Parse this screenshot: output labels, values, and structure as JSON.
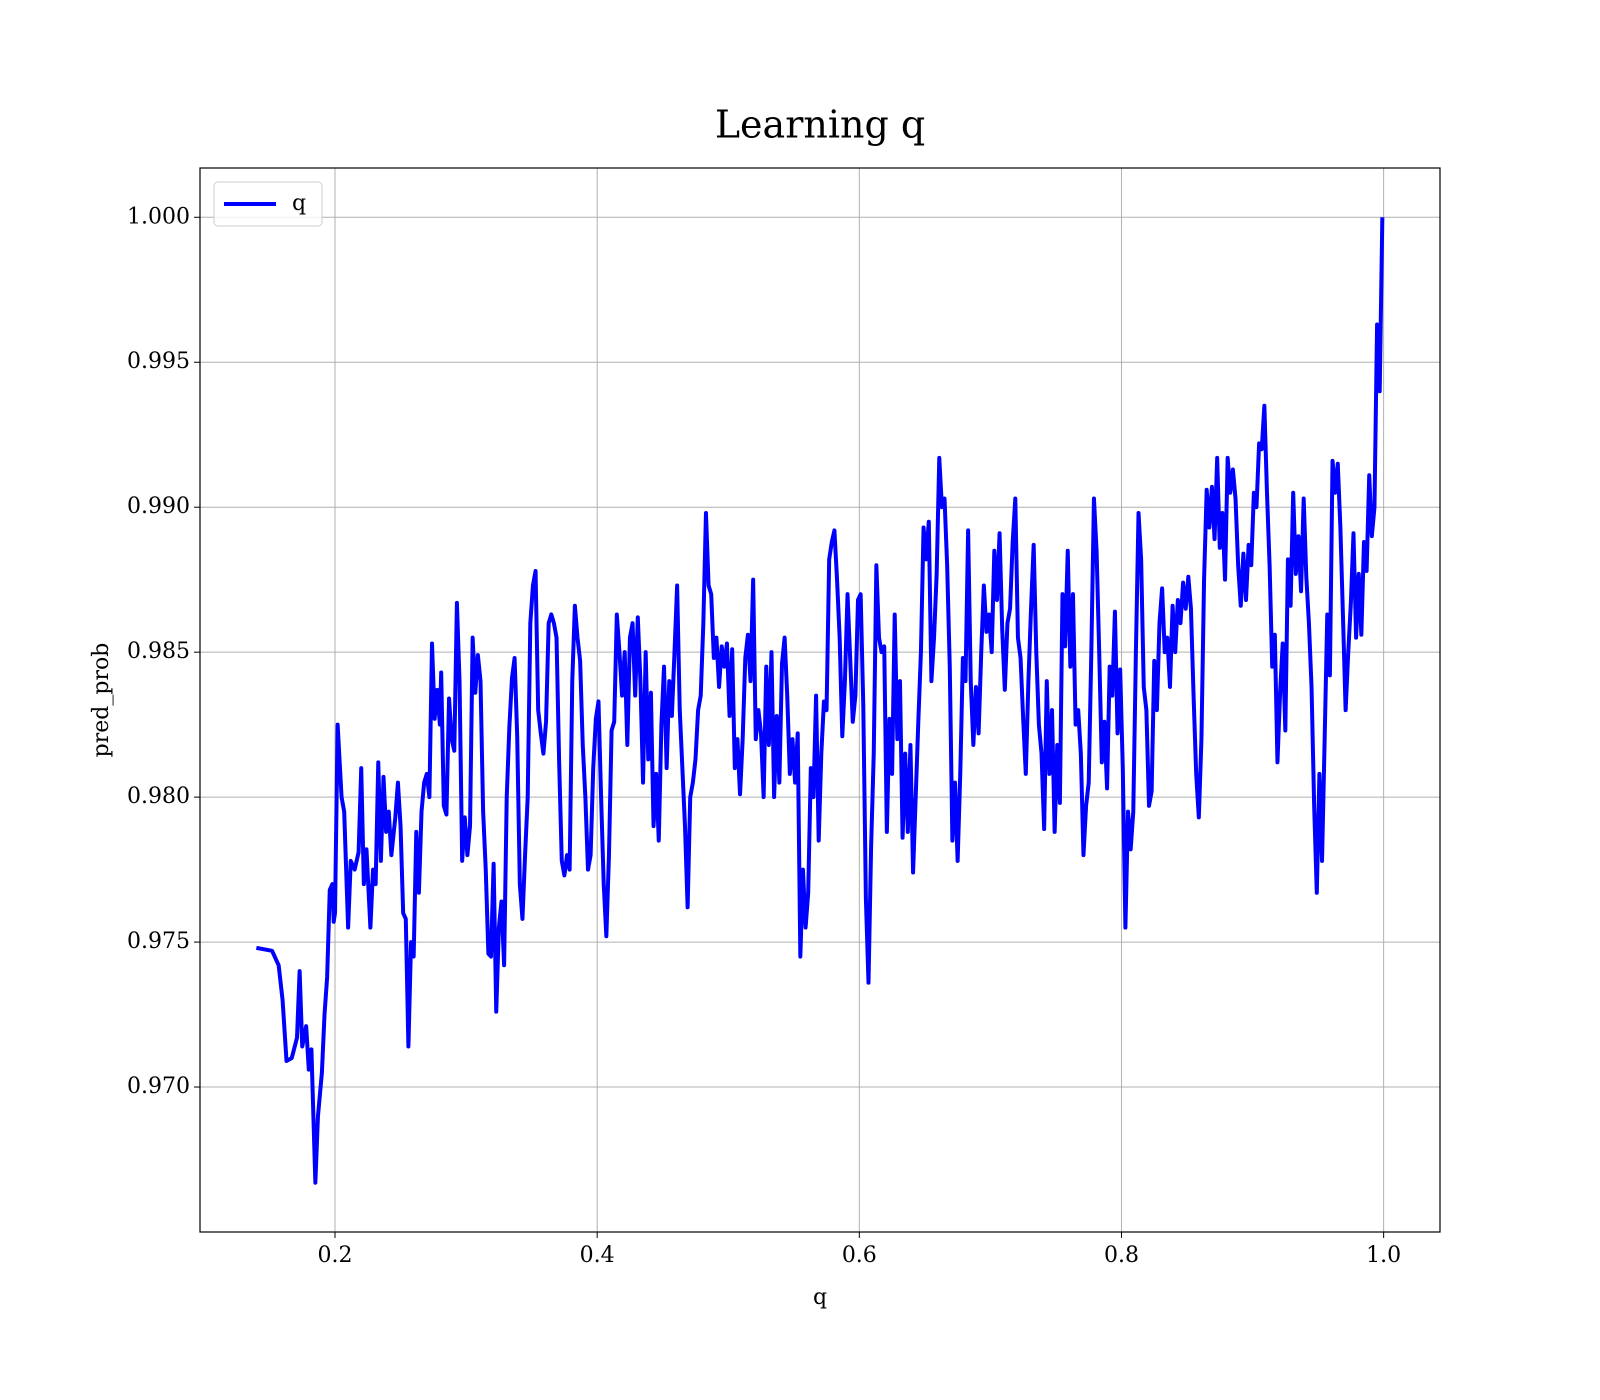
{
  "chart_data": {
    "type": "line",
    "title": "Learning q",
    "xlabel": "q",
    "ylabel": "pred_prob",
    "grid": true,
    "legend": "upper left",
    "xlim": [
      0.097,
      1.043
    ],
    "ylim": [
      0.965,
      1.0017
    ],
    "xticks": [
      0.2,
      0.4,
      0.6,
      0.8,
      {
        "value": 1,
        "label": "1.0"
      }
    ],
    "yticks": [
      {
        "value": 0.97,
        "label": "0.970"
      },
      0.975,
      {
        "value": 0.98,
        "label": "0.980"
      },
      0.985,
      {
        "value": 0.99,
        "label": "0.990"
      },
      0.995,
      {
        "value": 1,
        "label": "1.000"
      }
    ],
    "x": [
      0.14,
      0.152,
      0.157,
      0.16,
      0.163,
      0.167,
      0.171,
      0.173,
      0.175,
      0.178,
      0.18,
      0.182,
      0.185,
      0.187,
      0.19,
      0.192,
      0.194,
      0.196,
      0.198,
      0.199,
      0.2,
      0.202,
      0.205,
      0.207,
      0.21,
      0.212,
      0.215,
      0.218,
      0.22,
      0.222,
      0.224,
      0.227,
      0.229,
      0.231,
      0.233,
      0.235,
      0.237,
      0.239,
      0.241,
      0.243,
      0.246,
      0.248,
      0.25,
      0.252,
      0.254,
      0.256,
      0.258,
      0.26,
      0.262,
      0.264,
      0.266,
      0.268,
      0.27,
      0.272,
      0.274,
      0.276,
      0.278,
      0.28,
      0.281,
      0.283,
      0.285,
      0.287,
      0.289,
      0.291,
      0.293,
      0.295,
      0.297,
      0.299,
      0.301,
      0.303,
      0.305,
      0.307,
      0.309,
      0.311,
      0.313,
      0.315,
      0.317,
      0.319,
      0.321,
      0.323,
      0.325,
      0.327,
      0.329,
      0.331,
      0.333,
      0.335,
      0.337,
      0.339,
      0.341,
      0.343,
      0.345,
      0.347,
      0.349,
      0.351,
      0.353,
      0.355,
      0.357,
      0.359,
      0.361,
      0.363,
      0.365,
      0.367,
      0.369,
      0.371,
      0.373,
      0.375,
      0.377,
      0.379,
      0.381,
      0.383,
      0.385,
      0.387,
      0.389,
      0.391,
      0.393,
      0.395,
      0.397,
      0.399,
      0.401,
      0.403,
      0.405,
      0.407,
      0.409,
      0.411,
      0.413,
      0.415,
      0.417,
      0.419,
      0.421,
      0.423,
      0.425,
      0.427,
      0.429,
      0.431,
      0.433,
      0.435,
      0.437,
      0.439,
      0.441,
      0.443,
      0.445,
      0.447,
      0.449,
      0.451,
      0.453,
      0.455,
      0.457,
      0.459,
      0.461,
      0.463,
      0.465,
      0.467,
      0.469,
      0.471,
      0.473,
      0.475,
      0.477,
      0.479,
      0.481,
      0.483,
      0.485,
      0.487,
      0.489,
      0.491,
      0.493,
      0.495,
      0.497,
      0.499,
      0.501,
      0.503,
      0.505,
      0.507,
      0.509,
      0.511,
      0.513,
      0.515,
      0.517,
      0.519,
      0.521,
      0.523,
      0.525,
      0.527,
      0.529,
      0.531,
      0.533,
      0.535,
      0.537,
      0.539,
      0.541,
      0.543,
      0.545,
      0.547,
      0.549,
      0.551,
      0.553,
      0.555,
      0.557,
      0.559,
      0.561,
      0.563,
      0.565,
      0.567,
      0.569,
      0.571,
      0.573,
      0.575,
      0.577,
      0.579,
      0.581,
      0.583,
      0.585,
      0.587,
      0.589,
      0.591,
      0.593,
      0.595,
      0.597,
      0.599,
      0.601,
      0.603,
      0.605,
      0.607,
      0.609,
      0.611,
      0.613,
      0.615,
      0.617,
      0.619,
      0.621,
      0.623,
      0.625,
      0.627,
      0.629,
      0.631,
      0.633,
      0.635,
      0.637,
      0.639,
      0.641,
      0.643,
      0.645,
      0.647,
      0.649,
      0.651,
      0.653,
      0.655,
      0.657,
      0.659,
      0.661,
      0.663,
      0.665,
      0.667,
      0.669,
      0.671,
      0.673,
      0.675,
      0.677,
      0.679,
      0.681,
      0.683,
      0.685,
      0.687,
      0.689,
      0.691,
      0.693,
      0.695,
      0.697,
      0.699,
      0.701,
      0.703,
      0.705,
      0.707,
      0.709,
      0.711,
      0.713,
      0.715,
      0.717,
      0.719,
      0.721,
      0.723,
      0.725,
      0.727,
      0.729,
      0.731,
      0.733,
      0.735,
      0.737,
      0.739,
      0.741,
      0.743,
      0.745,
      0.747,
      0.749,
      0.751,
      0.753,
      0.755,
      0.757,
      0.759,
      0.761,
      0.763,
      0.765,
      0.767,
      0.769,
      0.771,
      0.773,
      0.775,
      0.777,
      0.779,
      0.781,
      0.783,
      0.785,
      0.787,
      0.789,
      0.791,
      0.793,
      0.795,
      0.797,
      0.799,
      0.801,
      0.803,
      0.805,
      0.807,
      0.809,
      0.811,
      0.813,
      0.815,
      0.817,
      0.819,
      0.821,
      0.823,
      0.825,
      0.827,
      0.829,
      0.831,
      0.833,
      0.835,
      0.837,
      0.839,
      0.841,
      0.843,
      0.845,
      0.847,
      0.849,
      0.851,
      0.853,
      0.855,
      0.857,
      0.859,
      0.861,
      0.863,
      0.865,
      0.867,
      0.869,
      0.871,
      0.873,
      0.875,
      0.877,
      0.879,
      0.881,
      0.883,
      0.885,
      0.887,
      0.889,
      0.891,
      0.893,
      0.895,
      0.897,
      0.899,
      0.901,
      0.903,
      0.905,
      0.907,
      0.909,
      0.911,
      0.913,
      0.915,
      0.917,
      0.919,
      0.921,
      0.923,
      0.925,
      0.927,
      0.929,
      0.931,
      0.933,
      0.935,
      0.937,
      0.939,
      0.941,
      0.943,
      0.945,
      0.947,
      0.949,
      0.951,
      0.953,
      0.955,
      0.957,
      0.959,
      0.961,
      0.963,
      0.965,
      0.967,
      0.969,
      0.971,
      0.973,
      0.975,
      0.977,
      0.979,
      0.981,
      0.983,
      0.985,
      0.987,
      0.989,
      0.991,
      0.993,
      0.995,
      0.997,
      0.999
    ],
    "series": [
      {
        "name": "q",
        "color": "#0000ff",
        "values": [
          0.9748,
          0.9747,
          0.9742,
          0.973,
          0.9709,
          0.971,
          0.9717,
          0.974,
          0.9714,
          0.9721,
          0.9706,
          0.9713,
          0.9667,
          0.969,
          0.9705,
          0.9725,
          0.9738,
          0.9768,
          0.977,
          0.9757,
          0.976,
          0.9825,
          0.98,
          0.9795,
          0.9755,
          0.9778,
          0.9775,
          0.9781,
          0.981,
          0.977,
          0.9782,
          0.9755,
          0.9775,
          0.977,
          0.9812,
          0.9778,
          0.9807,
          0.9788,
          0.9795,
          0.978,
          0.9793,
          0.9805,
          0.979,
          0.976,
          0.9758,
          0.9714,
          0.975,
          0.9745,
          0.9788,
          0.9767,
          0.9795,
          0.9805,
          0.9808,
          0.98,
          0.9853,
          0.9827,
          0.9837,
          0.9825,
          0.9843,
          0.9797,
          0.9794,
          0.9834,
          0.982,
          0.9816,
          0.9867,
          0.984,
          0.9778,
          0.9793,
          0.978,
          0.979,
          0.9855,
          0.9836,
          0.9849,
          0.984,
          0.9795,
          0.9775,
          0.9746,
          0.9745,
          0.9777,
          0.9726,
          0.9755,
          0.9764,
          0.9742,
          0.98,
          0.9824,
          0.9841,
          0.9848,
          0.9821,
          0.977,
          0.9758,
          0.978,
          0.98,
          0.986,
          0.9873,
          0.9878,
          0.983,
          0.9822,
          0.9815,
          0.9826,
          0.986,
          0.9863,
          0.986,
          0.9855,
          0.9812,
          0.9778,
          0.9773,
          0.978,
          0.9775,
          0.984,
          0.9866,
          0.9855,
          0.9847,
          0.9818,
          0.98,
          0.9775,
          0.978,
          0.981,
          0.9827,
          0.9833,
          0.98,
          0.977,
          0.9752,
          0.978,
          0.9823,
          0.9826,
          0.9863,
          0.985,
          0.9835,
          0.985,
          0.9818,
          0.9855,
          0.986,
          0.9835,
          0.9862,
          0.984,
          0.9805,
          0.985,
          0.9813,
          0.9836,
          0.979,
          0.9808,
          0.9785,
          0.9825,
          0.9845,
          0.981,
          0.984,
          0.9828,
          0.985,
          0.9873,
          0.983,
          0.981,
          0.979,
          0.9762,
          0.98,
          0.9805,
          0.9813,
          0.983,
          0.9835,
          0.986,
          0.9898,
          0.9873,
          0.987,
          0.9848,
          0.9855,
          0.9838,
          0.9852,
          0.9845,
          0.9853,
          0.9828,
          0.9851,
          0.981,
          0.982,
          0.9801,
          0.982,
          0.9848,
          0.9856,
          0.984,
          0.9875,
          0.982,
          0.983,
          0.9822,
          0.98,
          0.9845,
          0.9818,
          0.985,
          0.98,
          0.9828,
          0.9805,
          0.9846,
          0.9855,
          0.9835,
          0.9808,
          0.982,
          0.9805,
          0.9822,
          0.9745,
          0.9775,
          0.9755,
          0.9767,
          0.981,
          0.98,
          0.9835,
          0.9785,
          0.9815,
          0.9833,
          0.983,
          0.9882,
          0.9888,
          0.9892,
          0.9875,
          0.9855,
          0.9821,
          0.984,
          0.987,
          0.9848,
          0.9826,
          0.9835,
          0.9868,
          0.987,
          0.9832,
          0.9765,
          0.9736,
          0.9783,
          0.9815,
          0.988,
          0.9855,
          0.985,
          0.9852,
          0.9788,
          0.9827,
          0.9808,
          0.9863,
          0.982,
          0.984,
          0.9786,
          0.9815,
          0.9788,
          0.9818,
          0.9774,
          0.98,
          0.9826,
          0.985,
          0.9893,
          0.9882,
          0.9895,
          0.984,
          0.9855,
          0.9877,
          0.9917,
          0.99,
          0.9903,
          0.988,
          0.9845,
          0.9785,
          0.9805,
          0.9778,
          0.9808,
          0.9848,
          0.984,
          0.9892,
          0.984,
          0.9818,
          0.9838,
          0.9822,
          0.985,
          0.9873,
          0.9857,
          0.9863,
          0.985,
          0.9885,
          0.9868,
          0.9891,
          0.9858,
          0.9837,
          0.986,
          0.9865,
          0.9888,
          0.9903,
          0.9855,
          0.9848,
          0.9827,
          0.9808,
          0.984,
          0.9865,
          0.9887,
          0.985,
          0.9825,
          0.9815,
          0.9789,
          0.984,
          0.9808,
          0.983,
          0.9788,
          0.9818,
          0.9798,
          0.987,
          0.9852,
          0.9885,
          0.9845,
          0.987,
          0.9825,
          0.983,
          0.9815,
          0.978,
          0.9797,
          0.9805,
          0.985,
          0.9903,
          0.9885,
          0.985,
          0.9812,
          0.9826,
          0.9803,
          0.9845,
          0.9835,
          0.9864,
          0.9822,
          0.9844,
          0.981,
          0.9755,
          0.9795,
          0.9782,
          0.9795,
          0.985,
          0.9898,
          0.9882,
          0.9838,
          0.983,
          0.9797,
          0.9802,
          0.9847,
          0.983,
          0.986,
          0.9872,
          0.985,
          0.9855,
          0.9838,
          0.9866,
          0.985,
          0.9868,
          0.986,
          0.9874,
          0.9865,
          0.9876,
          0.9865,
          0.9835,
          0.9808,
          0.9793,
          0.982,
          0.9875,
          0.9906,
          0.9893,
          0.9907,
          0.9889,
          0.9917,
          0.9886,
          0.9898,
          0.9875,
          0.9917,
          0.9905,
          0.9913,
          0.9903,
          0.988,
          0.9866,
          0.9884,
          0.9868,
          0.9887,
          0.988,
          0.9905,
          0.99,
          0.9922,
          0.992,
          0.9935,
          0.9905,
          0.988,
          0.9845,
          0.9856,
          0.9812,
          0.9836,
          0.9853,
          0.9823,
          0.9882,
          0.9866,
          0.9905,
          0.9877,
          0.989,
          0.9871,
          0.9903,
          0.9876,
          0.986,
          0.9838,
          0.9797,
          0.9767,
          0.9808,
          0.9778,
          0.982,
          0.9863,
          0.9842,
          0.9916,
          0.9905,
          0.9915,
          0.9893,
          0.9862,
          0.983,
          0.985,
          0.9867,
          0.9891,
          0.9855,
          0.9877,
          0.9856,
          0.9888,
          0.9878,
          0.9911,
          0.989,
          0.99,
          0.9963,
          0.994,
          1.0
        ]
      }
    ]
  }
}
